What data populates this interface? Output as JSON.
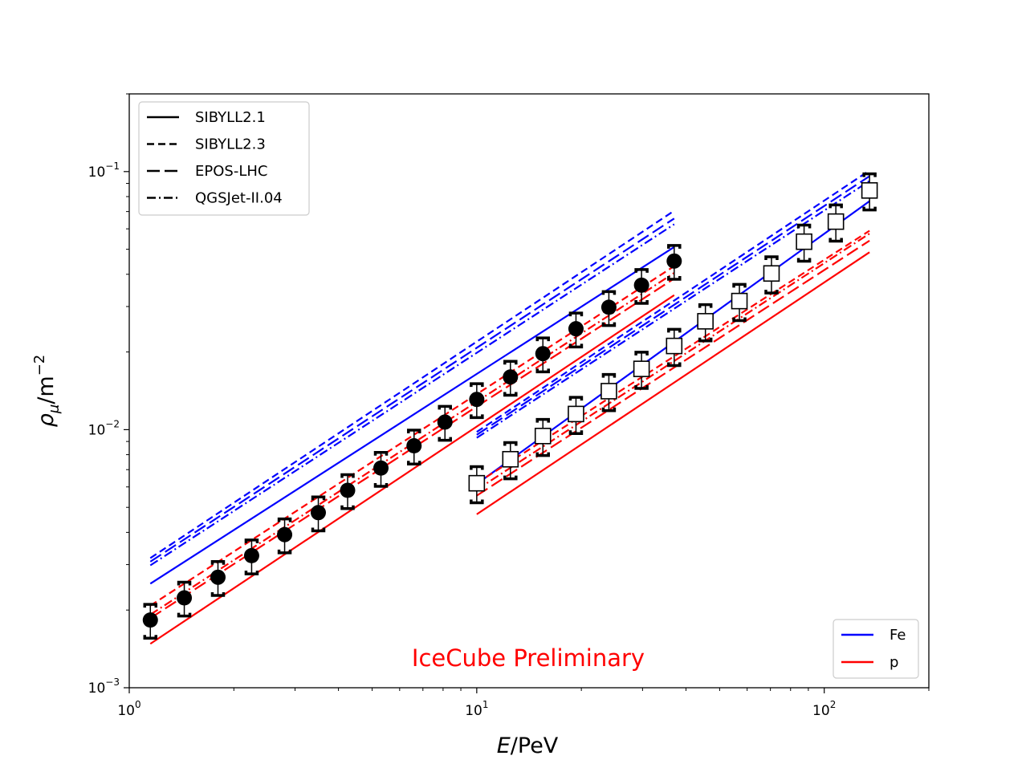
{
  "chart_data": {
    "type": "scatter",
    "xlabel": "E/PeV",
    "ylabel": "ρμ/m⁻²",
    "xscale": "log",
    "yscale": "log",
    "xlim": [
      1,
      200
    ],
    "ylim": [
      0.001,
      0.2
    ],
    "grid": false,
    "x_ticks": [
      {
        "value": 1,
        "base": "10",
        "exp": "0"
      },
      {
        "value": 10,
        "base": "10",
        "exp": "1"
      },
      {
        "value": 100,
        "base": "10",
        "exp": "2"
      }
    ],
    "y_ticks": [
      {
        "value": 0.001,
        "base": "10",
        "exp": "−3"
      },
      {
        "value": 0.01,
        "base": "10",
        "exp": "−2"
      },
      {
        "value": 0.1,
        "base": "10",
        "exp": "−1"
      }
    ],
    "annotation": {
      "text": "IceCube Preliminary",
      "color": "#ff0000"
    },
    "legends": [
      {
        "placement": "top-left",
        "entries": [
          {
            "label": "SIBYLL2.1",
            "style": "solid",
            "color": "#000000"
          },
          {
            "label": "SIBYLL2.3",
            "style": "dashed",
            "color": "#000000"
          },
          {
            "label": "EPOS-LHC",
            "style": "longdash",
            "color": "#000000"
          },
          {
            "label": "QGSJet-II.04",
            "style": "dashdot",
            "color": "#000000"
          }
        ]
      },
      {
        "placement": "bottom-right",
        "entries": [
          {
            "label": "Fe",
            "style": "solid",
            "color": "#0000ff"
          },
          {
            "label": "p",
            "style": "solid",
            "color": "#ff0000"
          }
        ]
      }
    ],
    "series": [
      {
        "marker": "filled-circle",
        "x": [
          1.15,
          1.44,
          1.8,
          2.25,
          2.8,
          3.5,
          4.25,
          5.3,
          6.6,
          8.1,
          10.0,
          12.5,
          15.5,
          19.3,
          24.0,
          29.8,
          37.0
        ],
        "y": [
          0.00183,
          0.00223,
          0.00268,
          0.00325,
          0.00392,
          0.00477,
          0.00582,
          0.0071,
          0.00866,
          0.0107,
          0.0131,
          0.016,
          0.0197,
          0.0246,
          0.0298,
          0.0363,
          0.045
        ],
        "yerr_rel": 0.15
      },
      {
        "marker": "open-square",
        "x": [
          10.0,
          12.5,
          15.5,
          19.3,
          24.0,
          29.8,
          37.0,
          45.5,
          57.0,
          70.5,
          87.5,
          108.0,
          135.0
        ],
        "y": [
          0.0062,
          0.00768,
          0.00945,
          0.0115,
          0.0141,
          0.0172,
          0.0211,
          0.0263,
          0.0315,
          0.0403,
          0.0535,
          0.064,
          0.0845
        ],
        "yerr_rel": 0.16
      }
    ],
    "model_lines": [
      {
        "model": "SIBYLL2.1",
        "primary": "Fe",
        "style": "solid",
        "color": "#0000ff",
        "x": [
          1.15,
          37.0
        ],
        "y": [
          0.00253,
          0.051
        ]
      },
      {
        "model": "SIBYLL2.3",
        "primary": "Fe",
        "style": "dashed",
        "color": "#0000ff",
        "x": [
          1.15,
          37.0
        ],
        "y": [
          0.00318,
          0.0705
        ]
      },
      {
        "model": "EPOS-LHC",
        "primary": "Fe",
        "style": "longdash",
        "color": "#0000ff",
        "x": [
          1.15,
          37.0
        ],
        "y": [
          0.00308,
          0.0658
        ]
      },
      {
        "model": "QGSJet-II.04",
        "primary": "Fe",
        "style": "dashdot",
        "color": "#0000ff",
        "x": [
          1.15,
          37.0
        ],
        "y": [
          0.00298,
          0.0625
        ]
      },
      {
        "model": "SIBYLL2.1",
        "primary": "p",
        "style": "solid",
        "color": "#ff0000",
        "x": [
          1.15,
          37.0
        ],
        "y": [
          0.00148,
          0.0332
        ]
      },
      {
        "model": "SIBYLL2.3",
        "primary": "p",
        "style": "dashed",
        "color": "#ff0000",
        "x": [
          1.15,
          37.0
        ],
        "y": [
          0.00208,
          0.043
        ]
      },
      {
        "model": "EPOS-LHC",
        "primary": "p",
        "style": "longdash",
        "color": "#ff0000",
        "x": [
          1.15,
          37.0
        ],
        "y": [
          0.00186,
          0.0385
        ]
      },
      {
        "model": "QGSJet-II.04",
        "primary": "p",
        "style": "dashdot",
        "color": "#ff0000",
        "x": [
          1.15,
          37.0
        ],
        "y": [
          0.00192,
          0.0405
        ]
      },
      {
        "model": "SIBYLL2.1",
        "primary": "Fe",
        "style": "solid",
        "color": "#0000ff",
        "x": [
          10.0,
          135.0
        ],
        "y": [
          0.00616,
          0.0768
        ]
      },
      {
        "model": "SIBYLL2.3",
        "primary": "Fe",
        "style": "dashed",
        "color": "#0000ff",
        "x": [
          10.0,
          135.0
        ],
        "y": [
          0.0098,
          0.101
        ]
      },
      {
        "model": "EPOS-LHC",
        "primary": "Fe",
        "style": "longdash",
        "color": "#0000ff",
        "x": [
          10.0,
          135.0
        ],
        "y": [
          0.00955,
          0.096
        ]
      },
      {
        "model": "QGSJet-II.04",
        "primary": "Fe",
        "style": "dashdot",
        "color": "#0000ff",
        "x": [
          10.0,
          135.0
        ],
        "y": [
          0.0093,
          0.092
        ]
      },
      {
        "model": "SIBYLL2.1",
        "primary": "p",
        "style": "solid",
        "color": "#ff0000",
        "x": [
          10.0,
          135.0
        ],
        "y": [
          0.0047,
          0.0487
        ]
      },
      {
        "model": "SIBYLL2.3",
        "primary": "p",
        "style": "dashed",
        "color": "#ff0000",
        "x": [
          10.0,
          135.0
        ],
        "y": [
          0.0062,
          0.059
        ]
      },
      {
        "model": "EPOS-LHC",
        "primary": "p",
        "style": "longdash",
        "color": "#ff0000",
        "x": [
          10.0,
          135.0
        ],
        "y": [
          0.00555,
          0.054
        ]
      },
      {
        "model": "QGSJet-II.04",
        "primary": "p",
        "style": "dashdot",
        "color": "#ff0000",
        "x": [
          10.0,
          135.0
        ],
        "y": [
          0.00585,
          0.0575
        ]
      }
    ]
  }
}
